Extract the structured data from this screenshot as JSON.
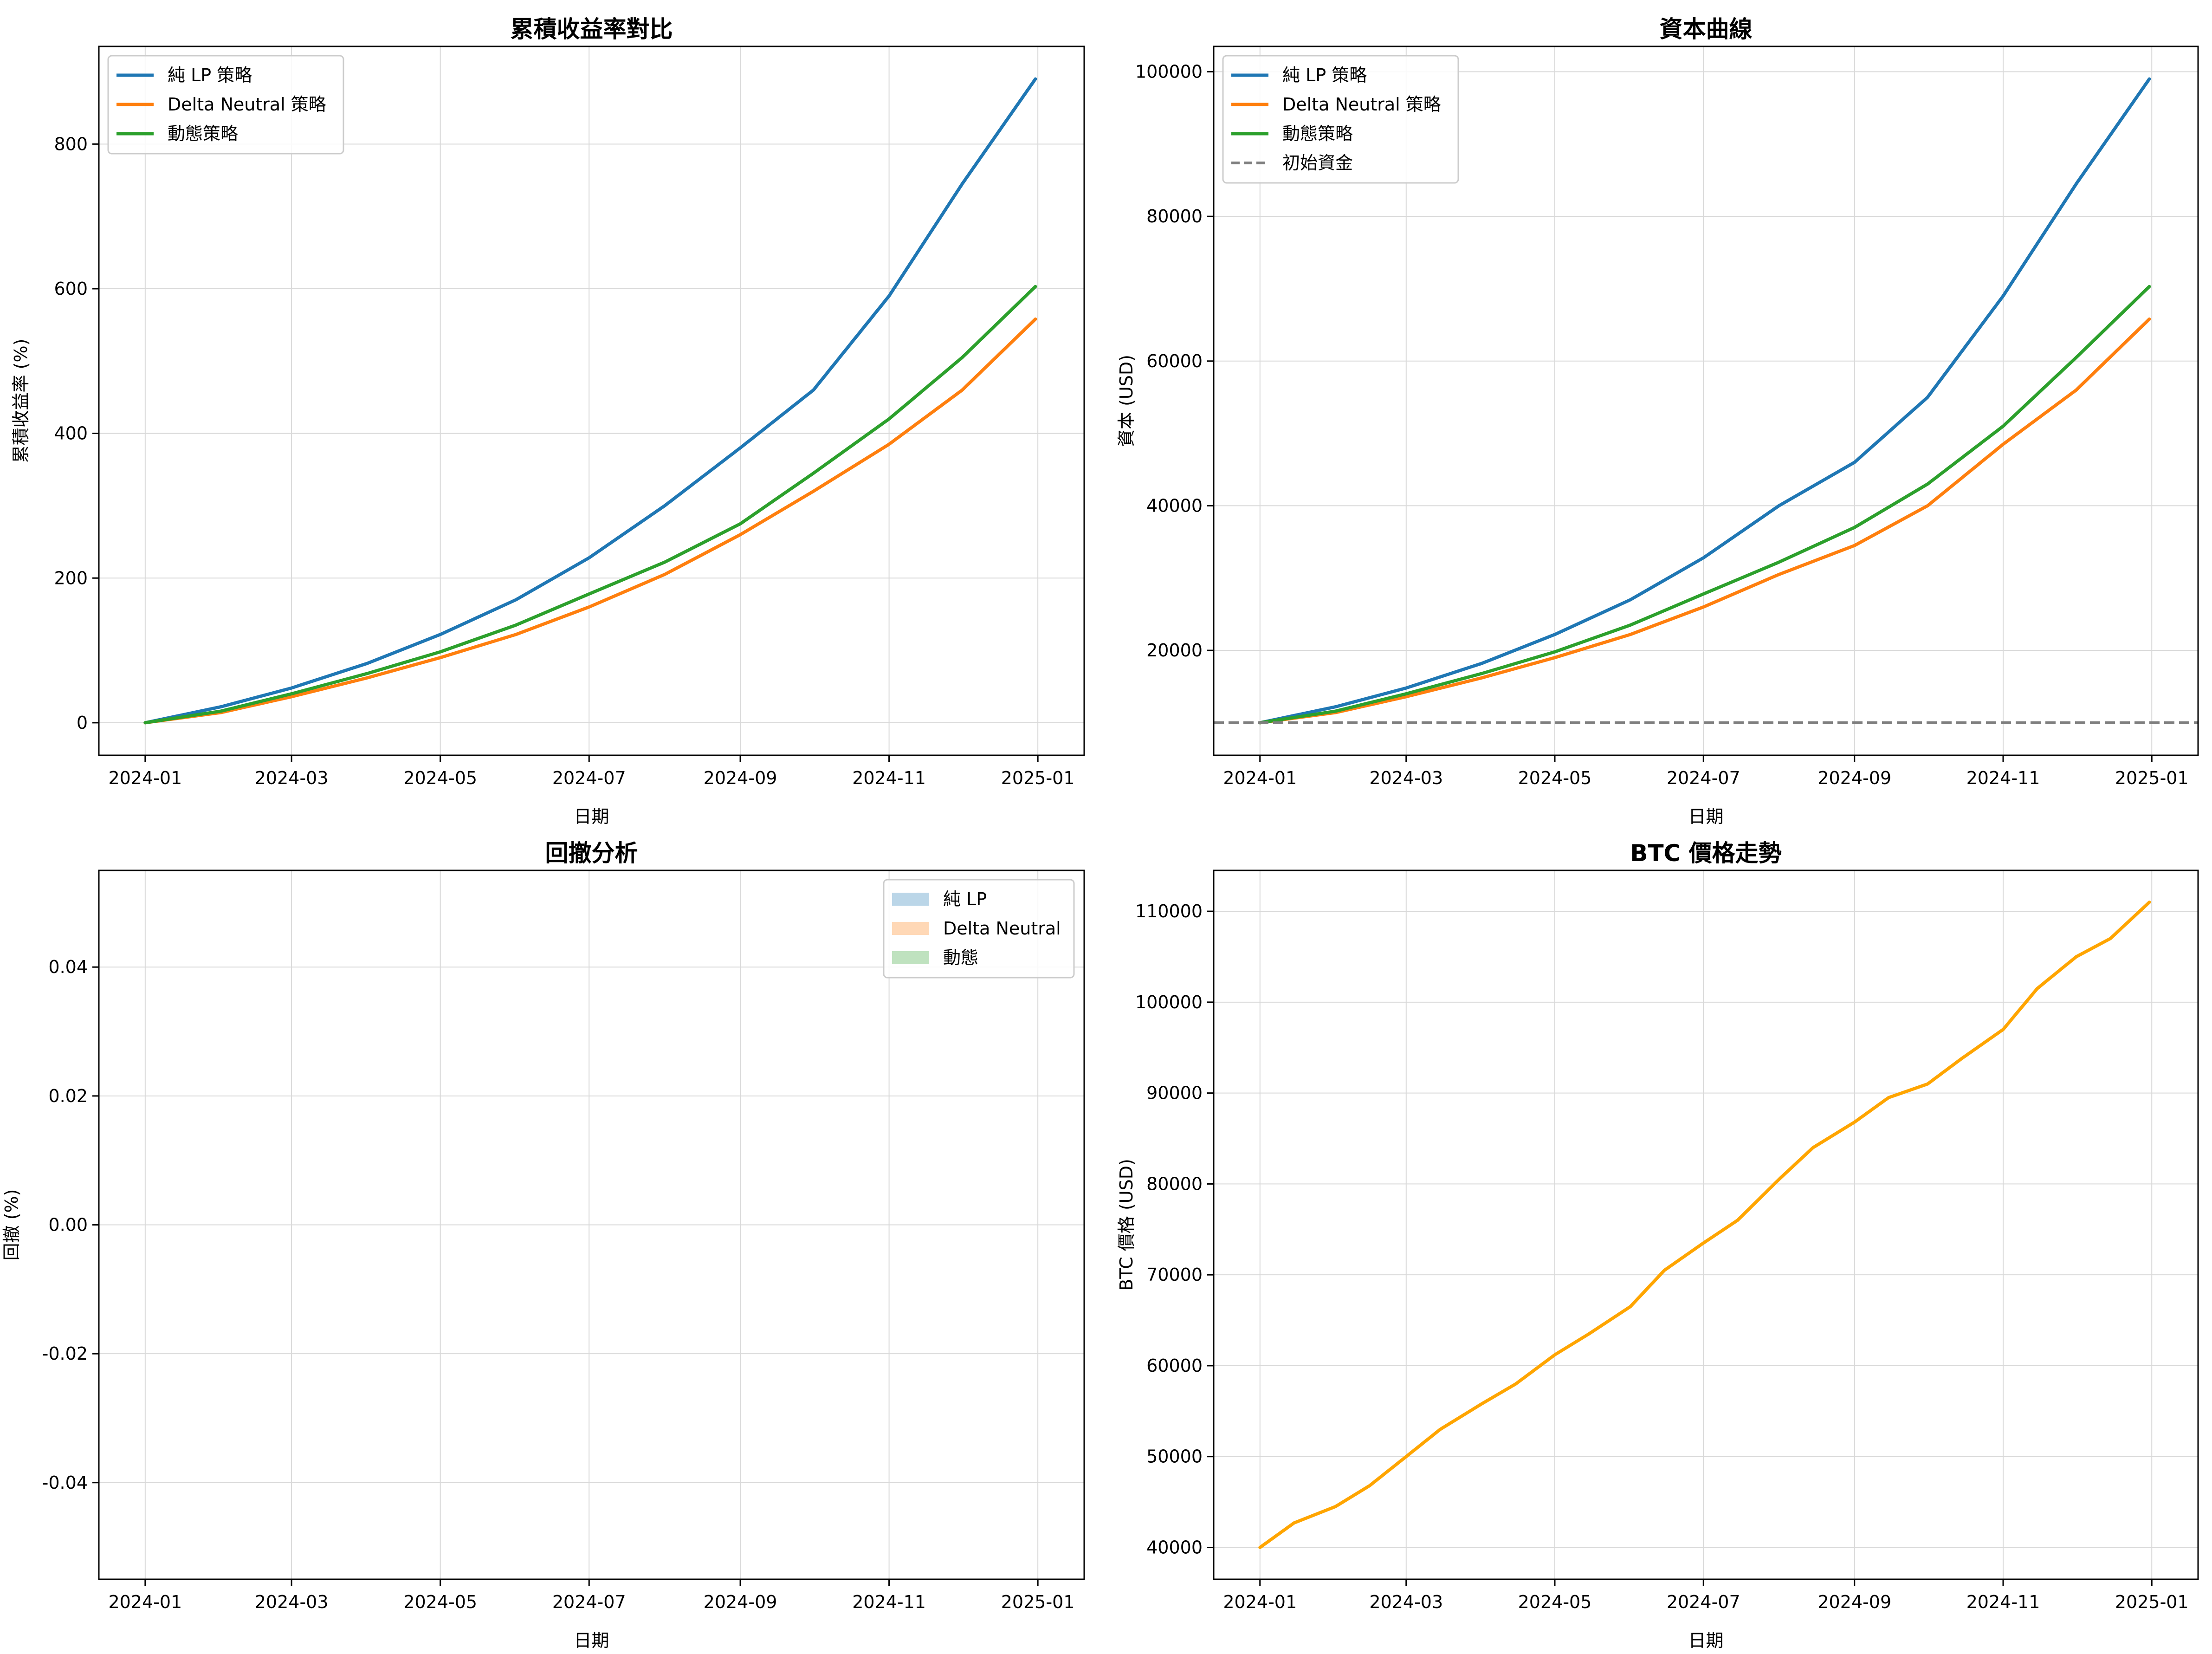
{
  "chart_data": [
    {
      "type": "line",
      "title": "累積收益率對比",
      "xlabel": "日期",
      "ylabel": "累積收益率 (%)",
      "xlim": [
        "2023-12-13",
        "2025-01-20"
      ],
      "ylim": [
        -45,
        935
      ],
      "x_ticks": [
        "2024-01",
        "2024-03",
        "2024-05",
        "2024-07",
        "2024-09",
        "2024-11",
        "2025-01"
      ],
      "y_ticks": [
        0,
        200,
        400,
        600,
        800
      ],
      "grid": true,
      "legend": "top-left",
      "x": [
        "2024-01-01",
        "2024-02-01",
        "2024-03-01",
        "2024-04-01",
        "2024-05-01",
        "2024-06-01",
        "2024-07-01",
        "2024-08-01",
        "2024-09-01",
        "2024-10-01",
        "2024-11-01",
        "2024-12-01",
        "2024-12-31"
      ],
      "series": [
        {
          "name": "純 LP 策略",
          "color": "#1f77b4",
          "values": [
            0,
            22,
            48,
            82,
            122,
            170,
            228,
            300,
            380,
            460,
            590,
            745,
            890
          ]
        },
        {
          "name": "Delta Neutral 策略",
          "color": "#ff7f0e",
          "values": [
            0,
            14,
            36,
            62,
            90,
            122,
            160,
            205,
            260,
            320,
            385,
            460,
            558
          ]
        },
        {
          "name": "動態策略",
          "color": "#2ca02c",
          "values": [
            0,
            16,
            40,
            68,
            98,
            135,
            178,
            222,
            275,
            345,
            420,
            505,
            603
          ]
        }
      ]
    },
    {
      "type": "line",
      "title": "資本曲線",
      "xlabel": "日期",
      "ylabel": "資本 (USD)",
      "xlim": [
        "2023-12-13",
        "2025-01-20"
      ],
      "ylim": [
        5500,
        103500
      ],
      "x_ticks": [
        "2024-01",
        "2024-03",
        "2024-05",
        "2024-07",
        "2024-09",
        "2024-11",
        "2025-01"
      ],
      "y_ticks": [
        20000,
        40000,
        60000,
        80000,
        100000
      ],
      "grid": true,
      "legend": "top-left",
      "x": [
        "2024-01-01",
        "2024-02-01",
        "2024-03-01",
        "2024-04-01",
        "2024-05-01",
        "2024-06-01",
        "2024-07-01",
        "2024-08-01",
        "2024-09-01",
        "2024-10-01",
        "2024-11-01",
        "2024-12-01",
        "2024-12-31"
      ],
      "series": [
        {
          "name": "純 LP 策略",
          "color": "#1f77b4",
          "values": [
            10000,
            12200,
            14800,
            18200,
            22200,
            27000,
            32800,
            40000,
            46000,
            55000,
            69000,
            84500,
            99000
          ]
        },
        {
          "name": "Delta Neutral 策略",
          "color": "#ff7f0e",
          "values": [
            10000,
            11400,
            13600,
            16200,
            19000,
            22200,
            26000,
            30500,
            34500,
            40000,
            48500,
            56000,
            65800
          ]
        },
        {
          "name": "動態策略",
          "color": "#2ca02c",
          "values": [
            10000,
            11600,
            14000,
            16800,
            19800,
            23500,
            27800,
            32200,
            37000,
            43000,
            51000,
            60500,
            70300
          ]
        }
      ],
      "reference_line": {
        "name": "初始資金",
        "value": 10000,
        "color": "#7f7f7f",
        "style": "dashed"
      }
    },
    {
      "type": "area",
      "title": "回撤分析",
      "xlabel": "日期",
      "ylabel": "回撤 (%)",
      "xlim": [
        "2023-12-13",
        "2025-01-20"
      ],
      "ylim": [
        -0.055,
        0.055
      ],
      "x_ticks": [
        "2024-01",
        "2024-03",
        "2024-05",
        "2024-07",
        "2024-09",
        "2024-11",
        "2025-01"
      ],
      "y_ticks": [
        0.04,
        0.02,
        0.0,
        -0.02,
        -0.04
      ],
      "y_tick_labels": [
        "0.04",
        "0.02",
        "0.00",
        "-0.02",
        "-0.04"
      ],
      "grid": true,
      "legend": "top-right",
      "x": [
        "2024-01-01",
        "2024-12-31"
      ],
      "series": [
        {
          "name": "純 LP",
          "color": "#1f77b4",
          "values": [
            0,
            0
          ]
        },
        {
          "name": "Delta Neutral",
          "color": "#ff7f0e",
          "values": [
            0,
            0
          ]
        },
        {
          "name": "動態",
          "color": "#2ca02c",
          "values": [
            0,
            0
          ]
        }
      ]
    },
    {
      "type": "line",
      "title": "BTC 價格走勢",
      "xlabel": "日期",
      "ylabel": "BTC 價格 (USD)",
      "xlim": [
        "2023-12-13",
        "2025-01-20"
      ],
      "ylim": [
        36500,
        114500
      ],
      "x_ticks": [
        "2024-01",
        "2024-03",
        "2024-05",
        "2024-07",
        "2024-09",
        "2024-11",
        "2025-01"
      ],
      "y_ticks": [
        40000,
        50000,
        60000,
        70000,
        80000,
        90000,
        100000,
        110000
      ],
      "grid": true,
      "x": [
        "2024-01-01",
        "2024-01-15",
        "2024-02-01",
        "2024-02-15",
        "2024-03-01",
        "2024-03-15",
        "2024-04-01",
        "2024-04-15",
        "2024-05-01",
        "2024-05-15",
        "2024-06-01",
        "2024-06-15",
        "2024-07-01",
        "2024-07-15",
        "2024-08-01",
        "2024-08-15",
        "2024-09-01",
        "2024-09-15",
        "2024-10-01",
        "2024-10-15",
        "2024-11-01",
        "2024-11-15",
        "2024-12-01",
        "2024-12-15",
        "2024-12-31"
      ],
      "series": [
        {
          "name": "",
          "color": "#ffa500",
          "values": [
            40000,
            42700,
            44500,
            46800,
            50000,
            53000,
            55800,
            58000,
            61200,
            63500,
            66500,
            70500,
            73500,
            76000,
            80500,
            84000,
            86800,
            89500,
            91000,
            93800,
            97000,
            101500,
            105000,
            107000,
            111000
          ]
        }
      ]
    }
  ]
}
